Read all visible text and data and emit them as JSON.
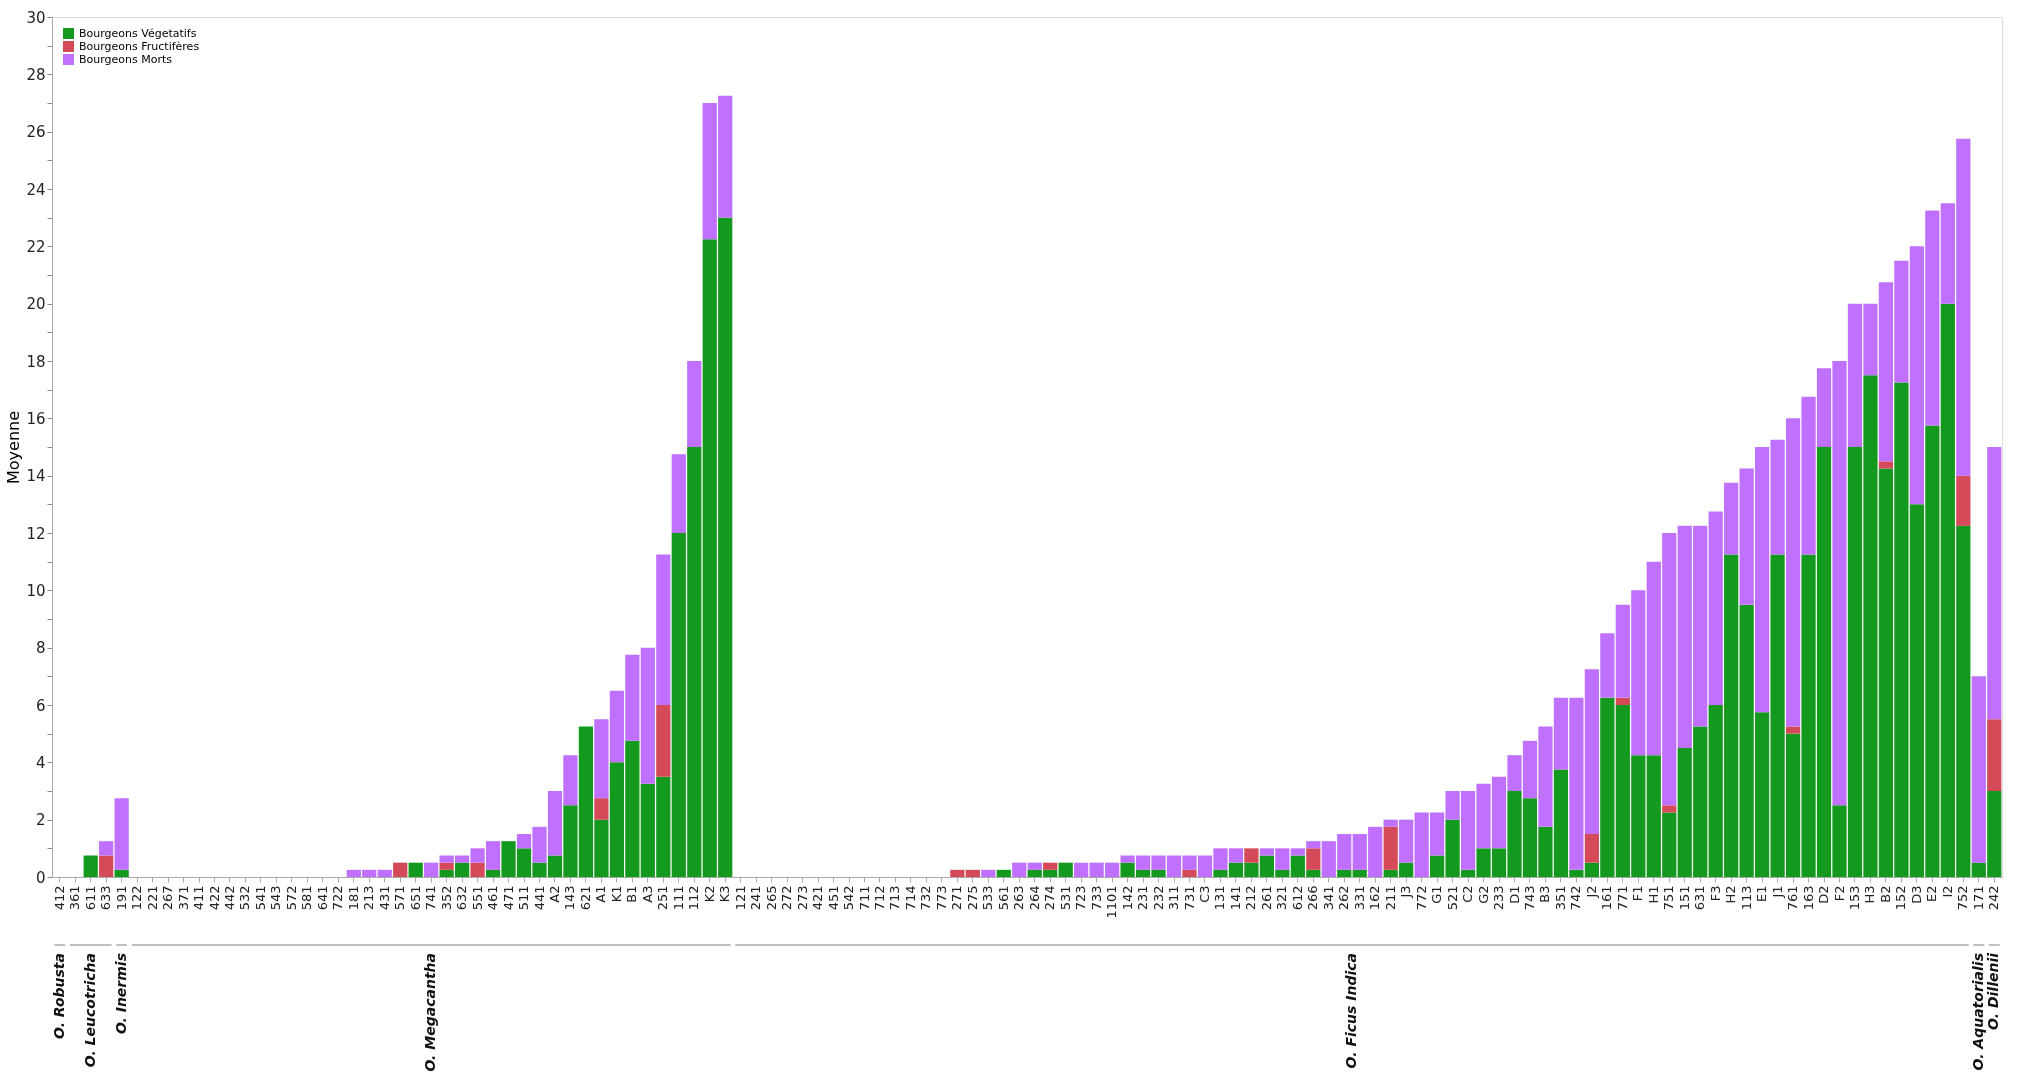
{
  "chart_data": {
    "type": "bar",
    "stacked": true,
    "ylabel": "Moyenne",
    "categories": [
      "412",
      "361",
      "611",
      "633",
      "191",
      "122",
      "221",
      "267",
      "371",
      "411",
      "422",
      "442",
      "532",
      "541",
      "543",
      "572",
      "581",
      "641",
      "722",
      "181",
      "213",
      "431",
      "571",
      "651",
      "741",
      "352",
      "632",
      "551",
      "461",
      "471",
      "511",
      "441",
      "A2",
      "143",
      "621",
      "A1",
      "K1",
      "B1",
      "A3",
      "251",
      "111",
      "112",
      "K2",
      "K3",
      "121",
      "241",
      "265",
      "272",
      "273",
      "421",
      "451",
      "542",
      "711",
      "712",
      "713",
      "714",
      "732",
      "773",
      "271",
      "275",
      "533",
      "561",
      "263",
      "264",
      "274",
      "531",
      "723",
      "733",
      "1101",
      "142",
      "231",
      "232",
      "311",
      "731",
      "C3",
      "131",
      "141",
      "212",
      "261",
      "321",
      "612",
      "266",
      "341",
      "262",
      "331",
      "162",
      "211",
      "J3",
      "772",
      "G1",
      "521",
      "C2",
      "G2",
      "233",
      "D1",
      "743",
      "B3",
      "351",
      "742",
      "J2",
      "161",
      "771",
      "F1",
      "H1",
      "751",
      "151",
      "631",
      "F3",
      "H2",
      "113",
      "E1",
      "J1",
      "761",
      "163",
      "D2",
      "F2",
      "153",
      "H3",
      "B2",
      "152",
      "D3",
      "E2",
      "I2",
      "752",
      "171",
      "242"
    ],
    "series": [
      {
        "name": "Bourgeons Végetatifs",
        "color": "#139a1e",
        "values": [
          0,
          0,
          0.75,
          0,
          0.25,
          0,
          0,
          0,
          0,
          0,
          0,
          0,
          0,
          0,
          0,
          0,
          0,
          0,
          0,
          0,
          0,
          0,
          0,
          0.5,
          0,
          0.25,
          0.5,
          0,
          0.25,
          1.25,
          1,
          0.5,
          0.75,
          2.5,
          5.25,
          2,
          4,
          4.75,
          3.25,
          3.5,
          12,
          15,
          22.25,
          23,
          0,
          0,
          0,
          0,
          0,
          0,
          0,
          0,
          0,
          0,
          0,
          0,
          0,
          0,
          0,
          0,
          0,
          0.25,
          0,
          0.25,
          0.25,
          0.5,
          0,
          0,
          0,
          0.5,
          0.25,
          0.25,
          0,
          0,
          0,
          0.25,
          0.5,
          0.5,
          0.75,
          0.25,
          0.75,
          0.25,
          0,
          0.25,
          0.25,
          0,
          0.25,
          0.5,
          0,
          0.75,
          2,
          0.25,
          1,
          1,
          3,
          2.75,
          1.75,
          3.75,
          0.25,
          0.5,
          6.25,
          6,
          4.25,
          4.25,
          2.25,
          4.5,
          5.25,
          6,
          11.25,
          9.5,
          5.75,
          11.25,
          5,
          11.25,
          15,
          2.5,
          15,
          17.5,
          14.25,
          17.25,
          13,
          15.75,
          20,
          12.25,
          0.5,
          3
        ]
      },
      {
        "name": "Bourgeons Fructifères",
        "color": "#d44a58",
        "values": [
          0,
          0,
          0,
          0.75,
          0,
          0,
          0,
          0,
          0,
          0,
          0,
          0,
          0,
          0,
          0,
          0,
          0,
          0,
          0,
          0,
          0,
          0,
          0.5,
          0,
          0,
          0.25,
          0,
          0.5,
          0,
          0,
          0,
          0,
          0,
          0,
          0,
          0.75,
          0,
          0,
          0,
          2.5,
          0,
          0,
          0,
          0,
          0,
          0,
          0,
          0,
          0,
          0,
          0,
          0,
          0,
          0,
          0,
          0,
          0,
          0,
          0.25,
          0.25,
          0,
          0,
          0,
          0,
          0.25,
          0,
          0,
          0,
          0,
          0,
          0,
          0,
          0,
          0.25,
          0,
          0,
          0,
          0.5,
          0,
          0,
          0,
          0.75,
          0,
          0,
          0,
          0,
          1.5,
          0,
          0,
          0,
          0,
          0,
          0,
          0,
          0,
          0,
          0,
          0,
          0,
          1,
          0,
          0.25,
          0,
          0,
          0.25,
          0,
          0,
          0,
          0,
          0,
          0,
          0,
          0.25,
          0,
          0,
          0,
          0,
          0,
          0.25,
          0,
          0,
          0,
          0,
          1.75,
          0,
          2.5
        ]
      },
      {
        "name": "Bourgeons Morts",
        "color": "#c070ff",
        "values": [
          0,
          0,
          0,
          0.5,
          2.5,
          0,
          0,
          0,
          0,
          0,
          0,
          0,
          0,
          0,
          0,
          0,
          0,
          0,
          0,
          0.25,
          0.25,
          0.25,
          0,
          0,
          0.5,
          0.25,
          0.25,
          0.5,
          1,
          0,
          0.5,
          1.25,
          2.25,
          1.75,
          0,
          2.75,
          2.5,
          3,
          4.75,
          5.25,
          2.75,
          3,
          4.75,
          4.25,
          0,
          0,
          0,
          0,
          0,
          0,
          0,
          0,
          0,
          0,
          0,
          0,
          0,
          0,
          0,
          0,
          0.25,
          0,
          0.5,
          0.25,
          0,
          0,
          0.5,
          0.5,
          0.5,
          0.25,
          0.5,
          0.5,
          0.75,
          0.5,
          0.75,
          0.75,
          0.5,
          0,
          0.25,
          0.75,
          0.25,
          0.25,
          1.25,
          1.25,
          1.25,
          1.75,
          0.25,
          1.5,
          2.25,
          1.5,
          1,
          2.75,
          2.25,
          2.5,
          1.25,
          2,
          3.5,
          2.5,
          6,
          5.75,
          2.25,
          3.25,
          5.75,
          6.75,
          9.5,
          7.75,
          7,
          6.75,
          2.5,
          4.75,
          9.25,
          4,
          10.75,
          5.5,
          2.75,
          15.5,
          5,
          2.5,
          6.25,
          4.25,
          9,
          7.5,
          3.5,
          11.75,
          6.5,
          9.5
        ]
      }
    ],
    "ylim": [
      0,
      30
    ],
    "yticks": [
      0,
      {
        "value": 1,
        "label": null
      },
      2,
      {
        "value": 3,
        "label": null
      },
      4,
      {
        "value": 5,
        "label": null
      },
      6,
      {
        "value": 7,
        "label": null
      },
      8,
      {
        "value": 9,
        "label": null
      },
      10,
      {
        "value": 11,
        "label": null
      },
      12,
      {
        "value": 13,
        "label": null
      },
      14,
      {
        "value": 15,
        "label": null
      },
      16,
      {
        "value": 17,
        "label": null
      },
      18,
      {
        "value": 19,
        "label": null
      },
      20,
      {
        "value": 21,
        "label": null
      },
      22,
      {
        "value": 23,
        "label": null
      },
      24,
      {
        "value": 25,
        "label": null
      },
      26,
      {
        "value": 27,
        "label": null
      },
      28,
      {
        "value": 29,
        "label": null
      },
      30
    ],
    "grid": false,
    "legend": "top left",
    "annotations": [
      "O. Robusta",
      "O. Leucotricha",
      "O. Inermis",
      "O. Megacantha",
      "O. Ficus Indica",
      "O. Aquatorialis",
      "O. Dillenii"
    ]
  }
}
